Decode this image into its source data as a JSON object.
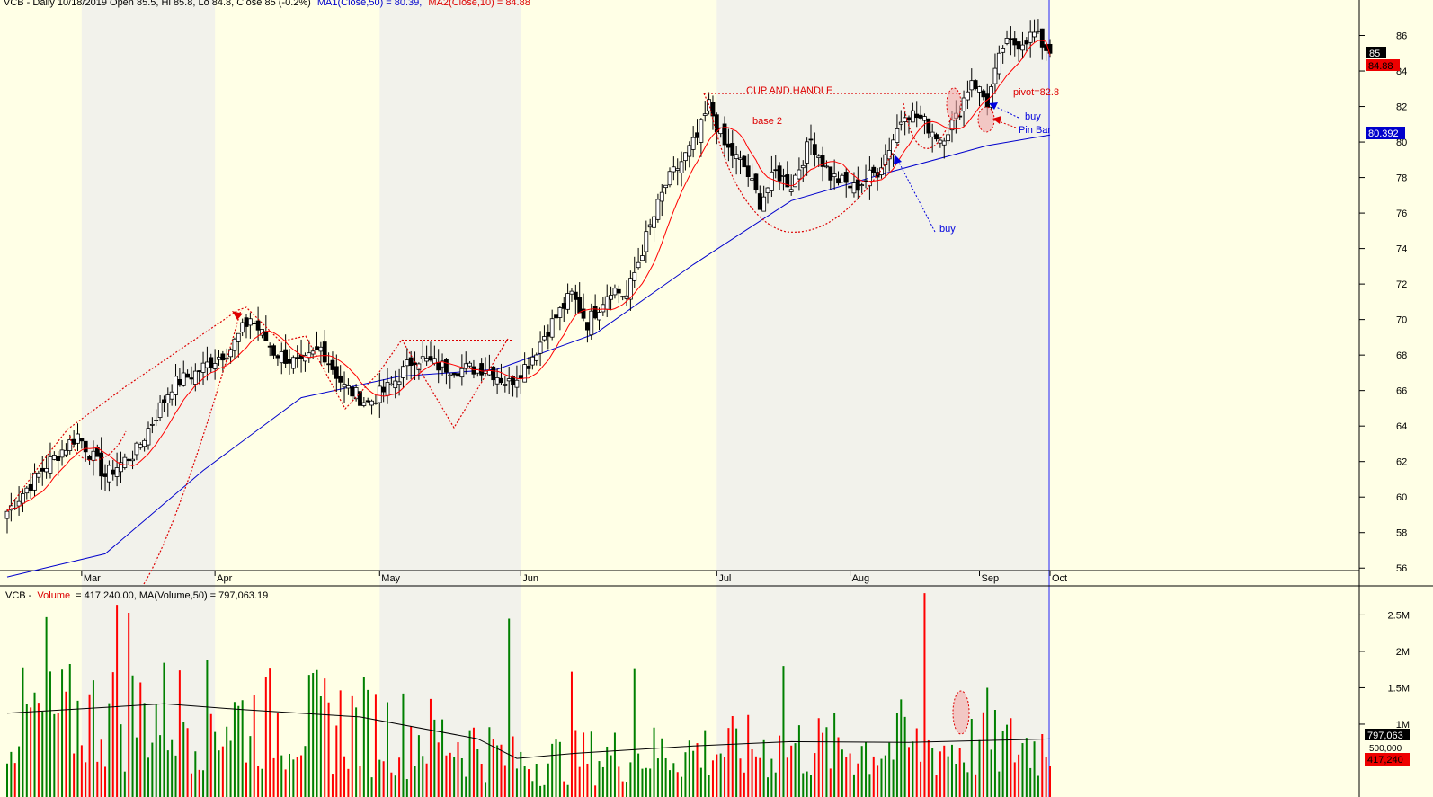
{
  "header": {
    "price_title": "VCB - Daily 10/18/2019 Open 85.5, Hi 85.8, Lo 84.8, Close 85 (-0.2%)",
    "ma1_label": "MA1(Close,50) = 80.39,",
    "ma2_label": "MA2(Close,10) = 84.88",
    "volume_prefix": "VCB -",
    "volume_word": "Volume",
    "volume_suffix": "= 417,240.00, MA(Volume,50) = 797,063.19"
  },
  "annotations": {
    "cup_and_handle": "CUP AND HANDLE",
    "base_2": "base 2",
    "pivot": "pivot=82.8",
    "buy_1": "buy",
    "buy_2": "buy",
    "pin_bar": "Pin Bar"
  },
  "price_badges": {
    "close": "85",
    "ma10": "84.88",
    "ma50": "80.392"
  },
  "volume_badges": {
    "ma50": "797,063",
    "volume": "417,240",
    "partial": "500,000"
  },
  "colors": {
    "background": "#ffffe6",
    "shade": "#ececec",
    "up_volume": "#008000",
    "down_volume": "#ff0000",
    "ma50": "#0000cc",
    "ma10": "#ff0000",
    "annotation": "#dd0000",
    "cursor": "#8c8cf0"
  },
  "chart_data": [
    {
      "type": "candlestick",
      "title": "VCB - Daily 10/18/2019",
      "x_months": [
        "Mar",
        "Apr",
        "May",
        "Jun",
        "Jul",
        "Aug",
        "Sep",
        "Oct"
      ],
      "y_ticks": [
        56,
        58,
        60,
        62,
        64,
        66,
        68,
        70,
        72,
        74,
        76,
        78,
        80,
        82,
        84,
        86
      ],
      "ylim": [
        55,
        88
      ],
      "last": {
        "open": 85.5,
        "high": 85.8,
        "low": 84.8,
        "close": 85,
        "change_pct": -0.2
      },
      "ma50_last": 80.39,
      "ma10_last": 84.88,
      "pivot": 82.8,
      "close_path": [
        [
          0,
          59.2
        ],
        [
          10,
          61.8
        ],
        [
          18,
          63.5
        ],
        [
          25,
          61.2
        ],
        [
          33,
          62.6
        ],
        [
          42,
          66.3
        ],
        [
          48,
          67.0
        ],
        [
          57,
          68.4
        ],
        [
          62,
          70.1
        ],
        [
          68,
          68.2
        ],
        [
          75,
          67.4
        ],
        [
          80,
          68.4
        ],
        [
          86,
          66.2
        ],
        [
          92,
          65.3
        ],
        [
          98,
          66.3
        ],
        [
          104,
          67.9
        ],
        [
          110,
          67.4
        ],
        [
          116,
          67.2
        ],
        [
          122,
          67.3
        ],
        [
          128,
          66.4
        ],
        [
          133,
          67.6
        ],
        [
          138,
          69.5
        ],
        [
          144,
          71.4
        ],
        [
          148,
          69.8
        ],
        [
          154,
          71.8
        ],
        [
          158,
          71.3
        ],
        [
          163,
          74.6
        ],
        [
          168,
          77.6
        ],
        [
          172,
          78.9
        ],
        [
          176,
          80.2
        ],
        [
          179,
          82.1
        ],
        [
          183,
          79.8
        ],
        [
          188,
          78.6
        ],
        [
          192,
          76.6
        ],
        [
          196,
          78.3
        ],
        [
          200,
          77.6
        ],
        [
          205,
          80.1
        ],
        [
          210,
          78.1
        ],
        [
          216,
          77.4
        ],
        [
          222,
          78.4
        ],
        [
          226,
          80.2
        ],
        [
          229,
          81.8
        ],
        [
          233,
          81.3
        ],
        [
          238,
          80.2
        ],
        [
          242,
          81.3
        ],
        [
          246,
          83.6
        ],
        [
          250,
          82.2
        ],
        [
          254,
          85.4
        ],
        [
          258,
          85.6
        ],
        [
          262,
          86.1
        ],
        [
          266,
          85.0
        ]
      ],
      "ma50_path": [
        [
          0,
          55.5
        ],
        [
          25,
          56.8
        ],
        [
          50,
          61.5
        ],
        [
          75,
          65.6
        ],
        [
          100,
          66.8
        ],
        [
          125,
          67.2
        ],
        [
          150,
          69.2
        ],
        [
          175,
          73.1
        ],
        [
          200,
          76.7
        ],
        [
          225,
          78.3
        ],
        [
          250,
          79.8
        ],
        [
          266,
          80.4
        ]
      ]
    },
    {
      "type": "bar",
      "title": "VCB - Volume",
      "ylim": [
        0,
        2900000
      ],
      "y_ticks": [
        {
          "value": 1000000,
          "label": "1M"
        },
        {
          "value": 1500000,
          "label": "1.5M"
        },
        {
          "value": 2000000,
          "label": "2M"
        },
        {
          "value": 2500000,
          "label": "2.5M"
        }
      ],
      "last_volume": 417240,
      "ma50_last": 797063.19,
      "ma50_path": [
        [
          0,
          1150000
        ],
        [
          40,
          1280000
        ],
        [
          60,
          1200000
        ],
        [
          90,
          1100000
        ],
        [
          120,
          800000
        ],
        [
          130,
          530000
        ],
        [
          145,
          600000
        ],
        [
          175,
          700000
        ],
        [
          200,
          760000
        ],
        [
          230,
          750000
        ],
        [
          266,
          797063
        ]
      ],
      "spikes": [
        [
          10,
          2470000,
          "green"
        ],
        [
          28,
          2640000,
          "red"
        ],
        [
          31,
          2530000,
          "red"
        ],
        [
          128,
          2450000,
          "green"
        ],
        [
          144,
          1720000,
          "red"
        ],
        [
          160,
          1770000,
          "green"
        ],
        [
          198,
          1800000,
          "green"
        ],
        [
          228,
          1340000,
          "green"
        ],
        [
          234,
          2800000,
          "red"
        ],
        [
          250,
          1500000,
          "green"
        ],
        [
          266,
          420000,
          "red"
        ]
      ]
    }
  ]
}
